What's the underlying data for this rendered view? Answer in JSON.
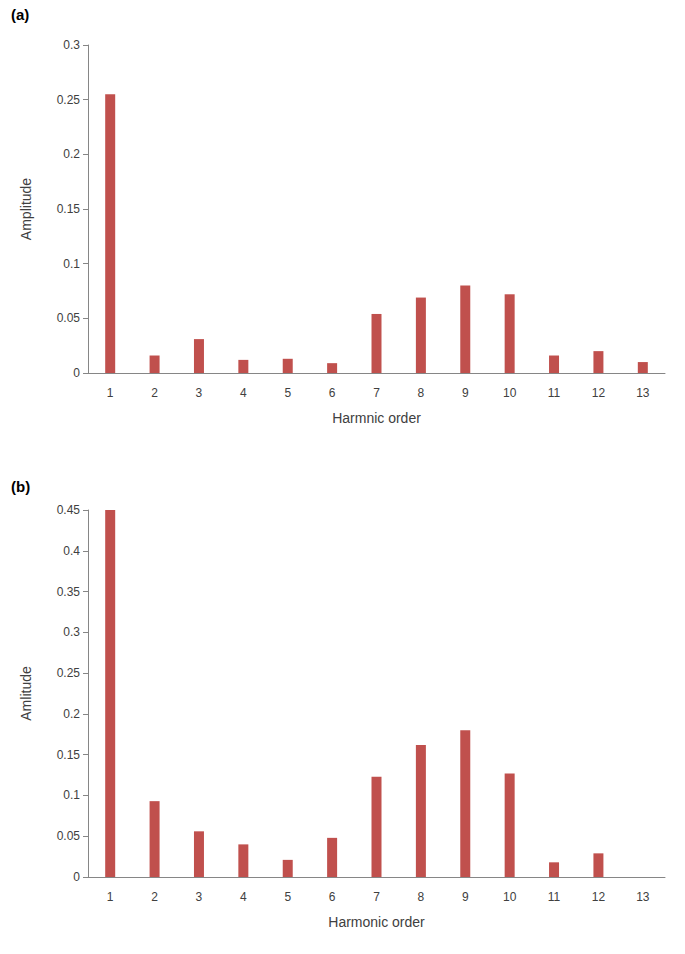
{
  "chart_data": [
    {
      "type": "bar",
      "title": "(a)",
      "x_label": "Harmnic order",
      "y_label": "Amplitude",
      "categories": [
        "1",
        "2",
        "3",
        "4",
        "5",
        "6",
        "7",
        "8",
        "9",
        "10",
        "11",
        "12",
        "13"
      ],
      "values": [
        0.255,
        0.016,
        0.031,
        0.012,
        0.013,
        0.009,
        0.054,
        0.069,
        0.08,
        0.072,
        0.016,
        0.02,
        0.01
      ],
      "color": "#c0504d",
      "ylim": [
        0,
        0.3
      ],
      "yticks": [
        0,
        0.05,
        0.1,
        0.15,
        0.2,
        0.25,
        0.3
      ],
      "grid": false
    },
    {
      "type": "bar",
      "title": "(b)",
      "x_label": "Harmonic order",
      "y_label": "Amlitude",
      "categories": [
        "1",
        "2",
        "3",
        "4",
        "5",
        "6",
        "7",
        "8",
        "9",
        "10",
        "11",
        "12",
        "13"
      ],
      "values": [
        0.45,
        0.093,
        0.056,
        0.04,
        0.021,
        0.048,
        0.123,
        0.162,
        0.18,
        0.127,
        0.018,
        0.029,
        null
      ],
      "color": "#c0504d",
      "ylim": [
        0,
        0.45
      ],
      "yticks": [
        0,
        0.05,
        0.1,
        0.15,
        0.2,
        0.25,
        0.3,
        0.35,
        0.4,
        0.45
      ],
      "grid": false
    }
  ]
}
